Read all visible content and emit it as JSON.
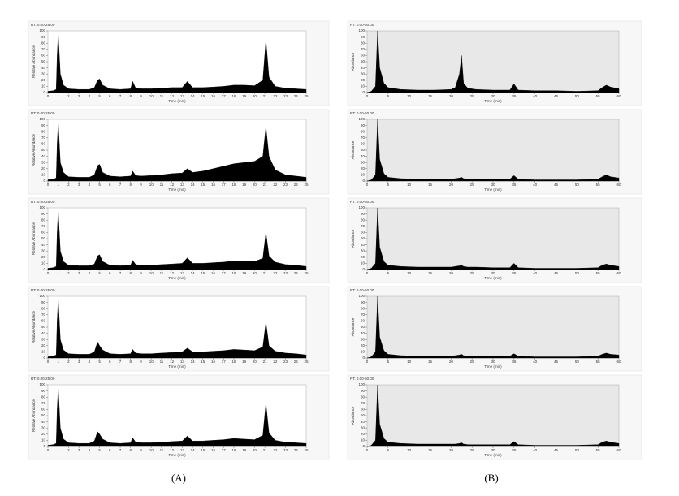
{
  "captions": [
    "(A)",
    "(B)"
  ],
  "chart_data": [
    {
      "type": "area",
      "title": "RT: 0.00-25.00",
      "x_label": "Time (min)",
      "y_label": "Relative Abundance",
      "color": "#000000",
      "background": "#ffffff",
      "x": [
        0,
        0.5,
        0.8,
        0.9,
        1.0,
        1.2,
        1.5,
        2,
        3,
        4,
        4.5,
        4.8,
        5.0,
        5.3,
        6,
        7,
        8,
        8.2,
        8.5,
        9,
        10,
        11,
        12,
        13,
        13.5,
        14,
        15,
        16,
        17,
        18,
        19,
        20,
        20.8,
        21.1,
        21.4,
        22,
        23,
        24,
        25
      ],
      "values": [
        2,
        3,
        5,
        60,
        95,
        30,
        12,
        6,
        5,
        5,
        8,
        20,
        22,
        12,
        6,
        5,
        6,
        18,
        7,
        6,
        6,
        7,
        8,
        8,
        18,
        8,
        8,
        9,
        10,
        12,
        12,
        11,
        20,
        85,
        25,
        10,
        7,
        6,
        5
      ],
      "xlim": [
        0,
        25
      ],
      "xticks": [
        0,
        1,
        2,
        3,
        4,
        5,
        6,
        7,
        8,
        9,
        10,
        11,
        12,
        13,
        14,
        15,
        16,
        17,
        18,
        19,
        20,
        21,
        22,
        23,
        24,
        25
      ],
      "ylim": [
        0,
        100
      ],
      "yticks": [
        0,
        10,
        20,
        30,
        40,
        50,
        60,
        70,
        80,
        90,
        100
      ]
    },
    {
      "type": "area",
      "title": "RT: 0.00-25.00",
      "x_label": "Time (min)",
      "y_label": "Relative Abundance",
      "color": "#000000",
      "background": "#ffffff",
      "x": [
        0,
        0.5,
        0.8,
        0.9,
        1.0,
        1.2,
        1.5,
        2,
        3,
        4,
        4.5,
        4.8,
        5.0,
        5.3,
        6,
        7,
        8,
        8.2,
        8.5,
        9,
        10,
        11,
        12,
        13,
        13.5,
        14,
        15,
        16,
        17,
        18,
        19,
        20,
        20.8,
        21.1,
        21.4,
        22,
        23,
        24,
        25
      ],
      "values": [
        2,
        3,
        5,
        60,
        95,
        30,
        14,
        7,
        6,
        6,
        10,
        25,
        27,
        14,
        8,
        7,
        8,
        16,
        9,
        8,
        9,
        10,
        12,
        13,
        20,
        14,
        16,
        20,
        24,
        28,
        30,
        32,
        40,
        88,
        40,
        18,
        10,
        8,
        6
      ],
      "xlim": [
        0,
        25
      ],
      "xticks": [
        0,
        1,
        2,
        3,
        4,
        5,
        6,
        7,
        8,
        9,
        10,
        11,
        12,
        13,
        14,
        15,
        16,
        17,
        18,
        19,
        20,
        21,
        22,
        23,
        24,
        25
      ],
      "ylim": [
        0,
        100
      ],
      "yticks": [
        0,
        10,
        20,
        30,
        40,
        50,
        60,
        70,
        80,
        90,
        100
      ]
    },
    {
      "type": "area",
      "title": "RT: 0.00-25.00",
      "x_label": "Time (min)",
      "y_label": "Relative Abundance",
      "color": "#000000",
      "background": "#ffffff",
      "x": [
        0,
        0.5,
        0.8,
        0.9,
        1.0,
        1.2,
        1.5,
        2,
        3,
        4,
        4.5,
        4.8,
        5.0,
        5.3,
        6,
        7,
        8,
        8.2,
        8.5,
        9,
        10,
        11,
        12,
        13,
        13.5,
        14,
        15,
        16,
        17,
        18,
        19,
        20,
        20.8,
        21.1,
        21.4,
        22,
        23,
        24,
        25
      ],
      "values": [
        2,
        3,
        5,
        60,
        95,
        30,
        13,
        7,
        6,
        6,
        9,
        22,
        24,
        13,
        7,
        6,
        7,
        15,
        8,
        7,
        7,
        8,
        9,
        10,
        19,
        10,
        10,
        11,
        12,
        14,
        14,
        13,
        18,
        60,
        22,
        12,
        8,
        7,
        5
      ],
      "xlim": [
        0,
        25
      ],
      "xticks": [
        0,
        1,
        2,
        3,
        4,
        5,
        6,
        7,
        8,
        9,
        10,
        11,
        12,
        13,
        14,
        15,
        16,
        17,
        18,
        19,
        20,
        21,
        22,
        23,
        24,
        25
      ],
      "ylim": [
        0,
        100
      ],
      "yticks": [
        0,
        10,
        20,
        30,
        40,
        50,
        60,
        70,
        80,
        90,
        100
      ]
    },
    {
      "type": "area",
      "title": "RT: 0.00-25.00",
      "x_label": "Time (min)",
      "y_label": "Relative Abundance",
      "color": "#000000",
      "background": "#ffffff",
      "x": [
        0,
        0.5,
        0.8,
        0.9,
        1.0,
        1.2,
        1.5,
        2,
        3,
        4,
        4.5,
        4.8,
        5.0,
        5.3,
        6,
        7,
        8,
        8.2,
        8.5,
        9,
        10,
        11,
        12,
        13,
        13.5,
        14,
        15,
        16,
        17,
        18,
        19,
        20,
        20.8,
        21.1,
        21.4,
        22,
        23,
        24,
        25
      ],
      "values": [
        2,
        3,
        5,
        60,
        95,
        30,
        13,
        7,
        6,
        6,
        10,
        26,
        20,
        13,
        7,
        6,
        7,
        14,
        8,
        7,
        7,
        8,
        9,
        10,
        16,
        10,
        10,
        11,
        12,
        14,
        13,
        12,
        18,
        58,
        20,
        11,
        8,
        7,
        5
      ],
      "xlim": [
        0,
        25
      ],
      "xticks": [
        0,
        1,
        2,
        3,
        4,
        5,
        6,
        7,
        8,
        9,
        10,
        11,
        12,
        13,
        14,
        15,
        16,
        17,
        18,
        19,
        20,
        21,
        22,
        23,
        24,
        25
      ],
      "ylim": [
        0,
        100
      ],
      "yticks": [
        0,
        10,
        20,
        30,
        40,
        50,
        60,
        70,
        80,
        90,
        100
      ]
    },
    {
      "type": "area",
      "title": "RT: 0.00-25.00",
      "x_label": "Time (min)",
      "y_label": "Relative Abundance",
      "color": "#000000",
      "background": "#ffffff",
      "x": [
        0,
        0.5,
        0.8,
        0.9,
        1.0,
        1.2,
        1.5,
        2,
        3,
        4,
        4.5,
        4.8,
        5.0,
        5.3,
        6,
        7,
        8,
        8.2,
        8.5,
        9,
        10,
        11,
        12,
        13,
        13.5,
        14,
        15,
        16,
        17,
        18,
        19,
        20,
        20.8,
        21.1,
        21.4,
        22,
        23,
        24,
        25
      ],
      "values": [
        2,
        3,
        5,
        60,
        95,
        30,
        12,
        6,
        5,
        5,
        9,
        24,
        20,
        12,
        6,
        5,
        6,
        14,
        7,
        6,
        6,
        7,
        8,
        9,
        17,
        9,
        9,
        10,
        11,
        13,
        12,
        11,
        18,
        70,
        22,
        10,
        7,
        6,
        5
      ],
      "xlim": [
        0,
        25
      ],
      "xticks": [
        0,
        1,
        2,
        3,
        4,
        5,
        6,
        7,
        8,
        9,
        10,
        11,
        12,
        13,
        14,
        15,
        16,
        17,
        18,
        19,
        20,
        21,
        22,
        23,
        24,
        25
      ],
      "ylim": [
        0,
        100
      ],
      "yticks": [
        0,
        10,
        20,
        30,
        40,
        50,
        60,
        70,
        80,
        90,
        100
      ]
    },
    {
      "type": "area",
      "title": "RT: 0.00-60.00",
      "x_label": "Time (min)",
      "y_label": "Abundance",
      "color": "#000000",
      "background": "#e8e8e8",
      "x": [
        0,
        1,
        2,
        2.5,
        3,
        4,
        5,
        8,
        12,
        16,
        20,
        21,
        22,
        22.5,
        23,
        24,
        26,
        30,
        34,
        35,
        36,
        40,
        45,
        50,
        55,
        56,
        57,
        58,
        60
      ],
      "values": [
        0,
        2,
        10,
        100,
        40,
        15,
        8,
        5,
        4,
        4,
        5,
        8,
        30,
        60,
        15,
        7,
        5,
        4,
        4,
        14,
        4,
        3,
        3,
        2,
        3,
        8,
        12,
        9,
        6
      ],
      "xlim": [
        0,
        60
      ],
      "xticks": [
        0,
        5,
        10,
        15,
        20,
        25,
        30,
        35,
        40,
        45,
        50,
        55,
        60
      ],
      "ylim": [
        0,
        100
      ],
      "yticks": [
        0,
        10,
        20,
        30,
        40,
        50,
        60,
        70,
        80,
        90,
        100
      ]
    },
    {
      "type": "area",
      "title": "RT: 0.00-60.00",
      "x_label": "Time (min)",
      "y_label": "Abundance",
      "color": "#000000",
      "background": "#e8e8e8",
      "x": [
        0,
        1,
        2,
        2.5,
        3,
        4,
        5,
        8,
        12,
        16,
        20,
        21,
        22,
        22.5,
        23,
        24,
        26,
        30,
        34,
        35,
        36,
        40,
        45,
        50,
        55,
        56,
        57,
        58,
        60
      ],
      "values": [
        0,
        2,
        10,
        100,
        35,
        12,
        6,
        4,
        3,
        3,
        3,
        4,
        5,
        6,
        4,
        3,
        3,
        3,
        3,
        9,
        3,
        2,
        2,
        2,
        3,
        7,
        10,
        7,
        5
      ],
      "xlim": [
        0,
        60
      ],
      "xticks": [
        0,
        5,
        10,
        15,
        20,
        25,
        30,
        35,
        40,
        45,
        50,
        55,
        60
      ],
      "ylim": [
        0,
        100
      ],
      "yticks": [
        0,
        10,
        20,
        30,
        40,
        50,
        60,
        70,
        80,
        90,
        100
      ]
    },
    {
      "type": "area",
      "title": "RT: 0.00-60.00",
      "x_label": "Time (min)",
      "y_label": "Abundance",
      "color": "#000000",
      "background": "#e8e8e8",
      "x": [
        0,
        1,
        2,
        2.5,
        3,
        4,
        5,
        8,
        12,
        16,
        20,
        21,
        22,
        22.5,
        23,
        24,
        26,
        30,
        34,
        35,
        36,
        40,
        45,
        50,
        55,
        56,
        57,
        58,
        60
      ],
      "values": [
        0,
        2,
        10,
        100,
        36,
        13,
        7,
        5,
        4,
        4,
        4,
        5,
        6,
        7,
        5,
        4,
        4,
        3,
        3,
        10,
        3,
        2,
        2,
        2,
        3,
        7,
        9,
        7,
        5
      ],
      "xlim": [
        0,
        60
      ],
      "xticks": [
        0,
        5,
        10,
        15,
        20,
        25,
        30,
        35,
        40,
        45,
        50,
        55,
        60
      ],
      "ylim": [
        0,
        100
      ],
      "yticks": [
        0,
        10,
        20,
        30,
        40,
        50,
        60,
        70,
        80,
        90,
        100
      ]
    },
    {
      "type": "area",
      "title": "RT: 0.00-60.00",
      "x_label": "Time (min)",
      "y_label": "Abundance",
      "color": "#000000",
      "background": "#e8e8e8",
      "x": [
        0,
        1,
        2,
        2.5,
        3,
        4,
        5,
        8,
        12,
        16,
        20,
        21,
        22,
        22.5,
        23,
        24,
        26,
        30,
        34,
        35,
        36,
        40,
        45,
        50,
        55,
        56,
        57,
        58,
        60
      ],
      "values": [
        0,
        2,
        10,
        100,
        34,
        12,
        6,
        4,
        3,
        3,
        3,
        4,
        5,
        6,
        4,
        3,
        3,
        3,
        3,
        7,
        3,
        2,
        2,
        2,
        3,
        6,
        8,
        6,
        5
      ],
      "xlim": [
        0,
        60
      ],
      "xticks": [
        0,
        5,
        10,
        15,
        20,
        25,
        30,
        35,
        40,
        45,
        50,
        55,
        60
      ],
      "ylim": [
        0,
        100
      ],
      "yticks": [
        0,
        10,
        20,
        30,
        40,
        50,
        60,
        70,
        80,
        90,
        100
      ]
    },
    {
      "type": "area",
      "title": "RT: 0.00-60.00",
      "x_label": "Time (min)",
      "y_label": "Abundance",
      "color": "#000000",
      "background": "#e8e8e8",
      "x": [
        0,
        1,
        2,
        2.5,
        3,
        4,
        5,
        8,
        12,
        16,
        20,
        21,
        22,
        22.5,
        23,
        24,
        26,
        30,
        34,
        35,
        36,
        40,
        45,
        50,
        55,
        56,
        57,
        58,
        60
      ],
      "values": [
        0,
        2,
        10,
        100,
        36,
        13,
        7,
        5,
        4,
        4,
        4,
        4,
        5,
        6,
        4,
        3,
        3,
        3,
        3,
        8,
        3,
        2,
        2,
        2,
        3,
        7,
        9,
        7,
        5
      ],
      "xlim": [
        0,
        60
      ],
      "xticks": [
        0,
        5,
        10,
        15,
        20,
        25,
        30,
        35,
        40,
        45,
        50,
        55,
        60
      ],
      "ylim": [
        0,
        100
      ],
      "yticks": [
        0,
        10,
        20,
        30,
        40,
        50,
        60,
        70,
        80,
        90,
        100
      ]
    }
  ]
}
